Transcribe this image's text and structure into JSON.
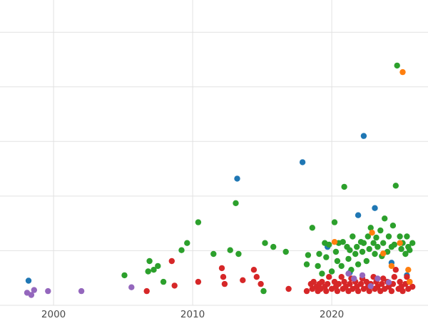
{
  "chart": {
    "background": "#ffffff",
    "grid_color": "#e2e2e2",
    "tick_label_color": "#4a4a4a",
    "tick_font_size": 13.5,
    "point_radius": 4.2
  },
  "chart_data": {
    "type": "scatter",
    "title": "",
    "subtitle": "",
    "xlabel": "",
    "ylabel": "",
    "grid": true,
    "legend": "none",
    "x_axis": {
      "min": 1996.15,
      "max": 2026.92,
      "ticks": [
        2000,
        2010,
        2020
      ],
      "tick_labels": [
        "2000",
        "2010",
        "2020"
      ]
    },
    "y_axis": {
      "min": 0,
      "max": 5.59,
      "gridlines": [
        0,
        1,
        2,
        3,
        4,
        5
      ],
      "tick_labels": []
    },
    "series": [
      {
        "name": "blue",
        "color": "#1f77b4",
        "points": [
          [
            1998.2,
            0.45
          ],
          [
            2013.2,
            2.32
          ],
          [
            2017.9,
            2.62
          ],
          [
            2022.3,
            3.1
          ],
          [
            2021.9,
            1.65
          ],
          [
            2023.1,
            1.78
          ],
          [
            2019.7,
            1.07
          ],
          [
            2024.3,
            0.78
          ],
          [
            2021.3,
            0.6
          ],
          [
            2025.4,
            0.55
          ]
        ]
      },
      {
        "name": "green",
        "color": "#2ca02c",
        "points": [
          [
            2005.1,
            0.55
          ],
          [
            2006.8,
            0.62
          ],
          [
            2006.9,
            0.81
          ],
          [
            2007.2,
            0.65
          ],
          [
            2007.5,
            0.72
          ],
          [
            2007.9,
            0.43
          ],
          [
            2009.2,
            1.01
          ],
          [
            2009.6,
            1.14
          ],
          [
            2010.4,
            1.52
          ],
          [
            2011.5,
            0.94
          ],
          [
            2012.7,
            1.01
          ],
          [
            2013.1,
            1.87
          ],
          [
            2013.3,
            0.94
          ],
          [
            2015.1,
            0.26
          ],
          [
            2015.2,
            1.14
          ],
          [
            2015.8,
            1.07
          ],
          [
            2016.7,
            0.98
          ],
          [
            2018.2,
            0.75
          ],
          [
            2018.3,
            0.92
          ],
          [
            2018.6,
            1.42
          ],
          [
            2019.0,
            0.72
          ],
          [
            2019.1,
            0.94
          ],
          [
            2019.3,
            0.58
          ],
          [
            2019.5,
            1.14
          ],
          [
            2019.6,
            0.88
          ],
          [
            2019.8,
            1.11
          ],
          [
            2020.0,
            0.62
          ],
          [
            2020.2,
            1.52
          ],
          [
            2020.3,
            0.98
          ],
          [
            2020.4,
            0.81
          ],
          [
            2020.5,
            1.14
          ],
          [
            2020.7,
            0.72
          ],
          [
            2020.8,
            1.16
          ],
          [
            2020.9,
            2.17
          ],
          [
            2021.1,
            1.07
          ],
          [
            2021.2,
            0.85
          ],
          [
            2021.3,
            1.01
          ],
          [
            2021.4,
            0.65
          ],
          [
            2021.5,
            1.26
          ],
          [
            2021.7,
            0.94
          ],
          [
            2021.8,
            1.07
          ],
          [
            2021.9,
            0.75
          ],
          [
            2022.1,
            1.16
          ],
          [
            2022.2,
            0.98
          ],
          [
            2022.3,
            1.14
          ],
          [
            2022.5,
            0.81
          ],
          [
            2022.6,
            1.26
          ],
          [
            2022.7,
            1.03
          ],
          [
            2022.8,
            1.42
          ],
          [
            2023.0,
            1.14
          ],
          [
            2023.1,
            0.94
          ],
          [
            2023.2,
            1.24
          ],
          [
            2023.3,
            1.07
          ],
          [
            2023.5,
            1.37
          ],
          [
            2023.6,
            0.9
          ],
          [
            2023.7,
            1.14
          ],
          [
            2023.8,
            1.59
          ],
          [
            2024.0,
            0.98
          ],
          [
            2024.1,
            1.26
          ],
          [
            2024.3,
            1.07
          ],
          [
            2024.4,
            1.46
          ],
          [
            2024.5,
            1.11
          ],
          [
            2024.6,
            2.19
          ],
          [
            2024.7,
            4.39
          ],
          [
            2024.9,
            1.26
          ],
          [
            2025.0,
            1.03
          ],
          [
            2025.1,
            1.14
          ],
          [
            2025.3,
            0.94
          ],
          [
            2025.4,
            1.26
          ],
          [
            2025.5,
            1.07
          ],
          [
            2025.6,
            1.01
          ],
          [
            2025.8,
            1.14
          ]
        ]
      },
      {
        "name": "red",
        "color": "#d62728",
        "points": [
          [
            2006.7,
            0.26
          ],
          [
            2008.5,
            0.81
          ],
          [
            2008.7,
            0.36
          ],
          [
            2010.4,
            0.43
          ],
          [
            2012.1,
            0.68
          ],
          [
            2012.2,
            0.52
          ],
          [
            2012.3,
            0.39
          ],
          [
            2013.6,
            0.46
          ],
          [
            2014.4,
            0.65
          ],
          [
            2014.6,
            0.52
          ],
          [
            2014.9,
            0.39
          ],
          [
            2016.9,
            0.3
          ],
          [
            2018.2,
            0.26
          ],
          [
            2018.5,
            0.39
          ],
          [
            2018.6,
            0.3
          ],
          [
            2018.7,
            0.43
          ],
          [
            2018.9,
            0.34
          ],
          [
            2019.0,
            0.26
          ],
          [
            2019.1,
            0.39
          ],
          [
            2019.2,
            0.3
          ],
          [
            2019.3,
            0.43
          ],
          [
            2019.5,
            0.34
          ],
          [
            2019.6,
            0.26
          ],
          [
            2019.7,
            0.39
          ],
          [
            2019.8,
            0.52
          ],
          [
            2020.0,
            0.3
          ],
          [
            2020.2,
            0.43
          ],
          [
            2020.3,
            0.34
          ],
          [
            2020.4,
            0.26
          ],
          [
            2020.5,
            0.39
          ],
          [
            2020.7,
            0.52
          ],
          [
            2020.8,
            0.3
          ],
          [
            2020.9,
            0.43
          ],
          [
            2021.0,
            0.34
          ],
          [
            2021.2,
            0.26
          ],
          [
            2021.3,
            0.39
          ],
          [
            2021.4,
            0.49
          ],
          [
            2021.5,
            0.3
          ],
          [
            2021.7,
            0.43
          ],
          [
            2021.8,
            0.34
          ],
          [
            2021.9,
            0.26
          ],
          [
            2022.1,
            0.39
          ],
          [
            2022.2,
            0.49
          ],
          [
            2022.3,
            0.3
          ],
          [
            2022.5,
            0.43
          ],
          [
            2022.6,
            0.34
          ],
          [
            2022.7,
            0.26
          ],
          [
            2022.8,
            0.39
          ],
          [
            2023.0,
            0.52
          ],
          [
            2023.1,
            0.3
          ],
          [
            2023.2,
            0.43
          ],
          [
            2023.3,
            0.34
          ],
          [
            2023.5,
            0.26
          ],
          [
            2023.6,
            0.39
          ],
          [
            2023.7,
            0.49
          ],
          [
            2023.8,
            0.3
          ],
          [
            2024.0,
            0.43
          ],
          [
            2024.1,
            0.34
          ],
          [
            2024.3,
            0.26
          ],
          [
            2024.4,
            0.39
          ],
          [
            2024.5,
            0.52
          ],
          [
            2024.6,
            0.65
          ],
          [
            2024.8,
            0.3
          ],
          [
            2024.9,
            0.43
          ],
          [
            2025.0,
            0.34
          ],
          [
            2025.1,
            0.26
          ],
          [
            2025.3,
            0.39
          ],
          [
            2025.4,
            0.52
          ],
          [
            2025.5,
            0.3
          ],
          [
            2025.6,
            0.43
          ],
          [
            2025.8,
            0.34
          ]
        ]
      },
      {
        "name": "purple",
        "color": "#9467bd",
        "points": [
          [
            1998.1,
            0.23
          ],
          [
            1998.4,
            0.19
          ],
          [
            1998.6,
            0.28
          ],
          [
            1999.6,
            0.26
          ],
          [
            2002.0,
            0.26
          ],
          [
            2005.6,
            0.33
          ],
          [
            2021.2,
            0.58
          ],
          [
            2021.6,
            0.49
          ],
          [
            2022.2,
            0.55
          ],
          [
            2023.3,
            0.49
          ],
          [
            2024.1,
            0.42
          ],
          [
            2022.8,
            0.35
          ]
        ]
      },
      {
        "name": "orange",
        "color": "#ff7f0e",
        "points": [
          [
            2025.1,
            4.27
          ],
          [
            2020.2,
            1.16
          ],
          [
            2022.9,
            1.33
          ],
          [
            2024.3,
            0.72
          ],
          [
            2024.9,
            1.14
          ],
          [
            2025.5,
            0.65
          ],
          [
            2025.6,
            0.43
          ],
          [
            2023.7,
            0.95
          ]
        ]
      }
    ]
  }
}
